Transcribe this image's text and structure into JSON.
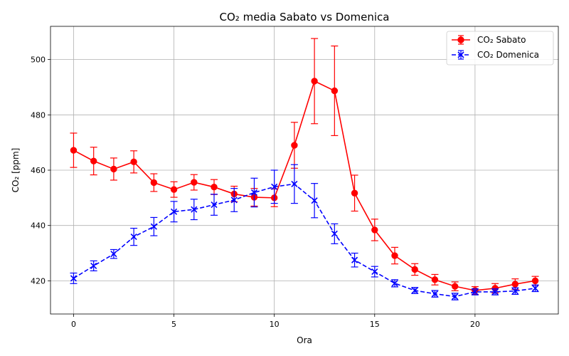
{
  "chart_data": {
    "type": "line",
    "title": "CO₂ media Sabato vs Domenica",
    "xlabel": "Ora",
    "ylabel": "CO₂ [ppm]",
    "xlim": [
      -1.15,
      24.15
    ],
    "ylim": [
      408,
      512
    ],
    "xticks": [
      0,
      5,
      10,
      15,
      20
    ],
    "yticks": [
      420,
      440,
      460,
      480,
      500
    ],
    "grid": true,
    "legend_position": "top-right",
    "x": [
      0,
      1,
      2,
      3,
      4,
      5,
      6,
      7,
      8,
      9,
      10,
      11,
      12,
      13,
      14,
      15,
      16,
      17,
      18,
      19,
      20,
      21,
      22,
      23
    ],
    "series": [
      {
        "name": "CO₂ Sabato",
        "color": "#ff0000",
        "linestyle": "solid",
        "marker": "circle",
        "values": [
          467.2,
          463.3,
          460.4,
          463.0,
          455.5,
          453.0,
          455.6,
          453.9,
          451.4,
          450.2,
          450.0,
          469.0,
          492.2,
          488.7,
          451.7,
          438.4,
          429.1,
          424.1,
          420.4,
          418.0,
          416.5,
          417.3,
          418.8,
          420.0
        ],
        "errors": [
          6.2,
          5.0,
          4.0,
          4.0,
          3.2,
          2.8,
          2.8,
          2.7,
          2.8,
          3.2,
          3.2,
          8.3,
          15.4,
          16.2,
          6.5,
          3.9,
          3.0,
          2.1,
          1.9,
          1.6,
          1.4,
          1.7,
          1.9,
          1.6
        ]
      },
      {
        "name": "CO₂ Domenica",
        "color": "#0000ff",
        "linestyle": "dashed",
        "marker": "x",
        "values": [
          420.9,
          425.4,
          429.7,
          435.9,
          439.6,
          445.0,
          445.8,
          447.5,
          449.2,
          451.9,
          454.0,
          455.0,
          449.0,
          437.0,
          427.5,
          423.3,
          419.1,
          416.5,
          415.3,
          414.3,
          416.0,
          416.0,
          416.3,
          417.3
        ],
        "errors": [
          1.9,
          1.8,
          1.6,
          3.1,
          3.3,
          3.7,
          3.7,
          3.8,
          4.2,
          5.2,
          6.0,
          7.0,
          6.2,
          3.6,
          2.5,
          1.9,
          1.3,
          1.1,
          1.2,
          1.2,
          1.1,
          1.1,
          1.2,
          1.2
        ]
      }
    ]
  }
}
